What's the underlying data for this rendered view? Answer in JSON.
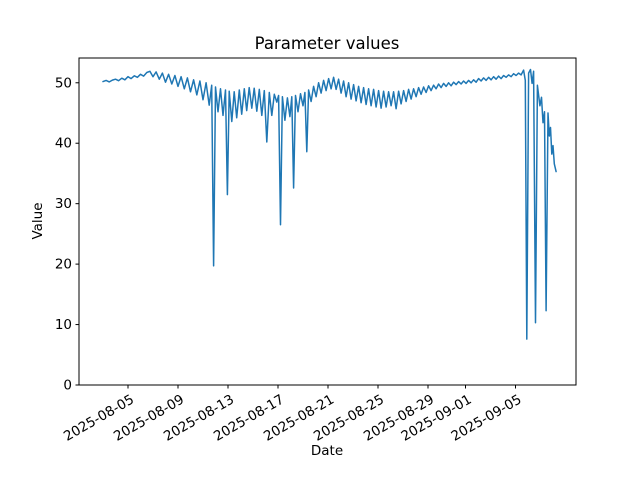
{
  "chart_data": {
    "type": "line",
    "title": "Parameter values",
    "xlabel": "Date",
    "ylabel": "Value",
    "line_color": "#1f77b4",
    "background_color": "#ffffff",
    "axis_color": "#000000",
    "legend": "none",
    "grid": false,
    "x_unit": "days since 2025-08-03",
    "xlim": [
      -1.92,
      37.84
    ],
    "ylim": [
      0,
      54.1
    ],
    "y_ticks": [
      0,
      10,
      20,
      30,
      40,
      50
    ],
    "x_ticks": [
      {
        "day": 2,
        "label": "2025-08-05"
      },
      {
        "day": 6,
        "label": "2025-08-09"
      },
      {
        "day": 10,
        "label": "2025-08-13"
      },
      {
        "day": 14,
        "label": "2025-08-17"
      },
      {
        "day": 18,
        "label": "2025-08-21"
      },
      {
        "day": 22,
        "label": "2025-08-25"
      },
      {
        "day": 26,
        "label": "2025-08-29"
      },
      {
        "day": 29,
        "label": "2025-09-01"
      },
      {
        "day": 33,
        "label": "2025-09-05"
      }
    ],
    "points": [
      [
        0.0,
        50.2
      ],
      [
        0.25,
        50.4
      ],
      [
        0.5,
        50.15
      ],
      [
        0.75,
        50.45
      ],
      [
        1.0,
        50.6
      ],
      [
        1.25,
        50.35
      ],
      [
        1.5,
        50.75
      ],
      [
        1.75,
        50.5
      ],
      [
        2.0,
        51.0
      ],
      [
        2.25,
        50.7
      ],
      [
        2.5,
        51.15
      ],
      [
        2.75,
        50.9
      ],
      [
        3.0,
        51.4
      ],
      [
        3.25,
        51.1
      ],
      [
        3.5,
        51.7
      ],
      [
        3.75,
        51.9
      ],
      [
        4.0,
        51.0
      ],
      [
        4.25,
        51.8
      ],
      [
        4.5,
        50.6
      ],
      [
        4.75,
        51.6
      ],
      [
        5.0,
        50.1
      ],
      [
        5.25,
        51.4
      ],
      [
        5.5,
        49.8
      ],
      [
        5.75,
        51.2
      ],
      [
        6.0,
        49.4
      ],
      [
        6.25,
        51.0
      ],
      [
        6.5,
        49.0
      ],
      [
        6.75,
        50.8
      ],
      [
        7.0,
        48.5
      ],
      [
        7.25,
        50.5
      ],
      [
        7.5,
        48.0
      ],
      [
        7.75,
        50.3
      ],
      [
        8.0,
        47.2
      ],
      [
        8.25,
        50.0
      ],
      [
        8.5,
        46.3
      ],
      [
        8.7,
        49.6
      ],
      [
        8.85,
        19.7
      ],
      [
        9.0,
        49.3
      ],
      [
        9.2,
        45.2
      ],
      [
        9.4,
        49.0
      ],
      [
        9.6,
        44.6
      ],
      [
        9.8,
        48.8
      ],
      [
        9.95,
        31.5
      ],
      [
        10.1,
        48.6
      ],
      [
        10.3,
        43.6
      ],
      [
        10.5,
        48.5
      ],
      [
        10.7,
        44.2
      ],
      [
        10.9,
        48.8
      ],
      [
        11.1,
        44.8
      ],
      [
        11.3,
        49.0
      ],
      [
        11.5,
        45.4
      ],
      [
        11.7,
        49.2
      ],
      [
        11.9,
        45.8
      ],
      [
        12.1,
        49.1
      ],
      [
        12.3,
        45.3
      ],
      [
        12.5,
        48.9
      ],
      [
        12.7,
        44.6
      ],
      [
        12.9,
        48.7
      ],
      [
        13.1,
        40.2
      ],
      [
        13.3,
        48.4
      ],
      [
        13.5,
        44.6
      ],
      [
        13.7,
        48.1
      ],
      [
        13.9,
        46.8
      ],
      [
        14.05,
        47.9
      ],
      [
        14.2,
        26.5
      ],
      [
        14.35,
        47.7
      ],
      [
        14.55,
        43.8
      ],
      [
        14.75,
        47.5
      ],
      [
        14.95,
        44.4
      ],
      [
        15.1,
        47.7
      ],
      [
        15.25,
        32.6
      ],
      [
        15.4,
        47.9
      ],
      [
        15.6,
        45.2
      ],
      [
        15.8,
        48.2
      ],
      [
        16.0,
        46.2
      ],
      [
        16.15,
        48.4
      ],
      [
        16.3,
        38.6
      ],
      [
        16.45,
        48.8
      ],
      [
        16.65,
        46.9
      ],
      [
        16.85,
        49.4
      ],
      [
        17.05,
        47.7
      ],
      [
        17.25,
        50.0
      ],
      [
        17.45,
        48.3
      ],
      [
        17.65,
        50.4
      ],
      [
        17.85,
        48.7
      ],
      [
        18.05,
        50.7
      ],
      [
        18.25,
        49.0
      ],
      [
        18.45,
        50.9
      ],
      [
        18.65,
        48.9
      ],
      [
        18.85,
        50.6
      ],
      [
        19.05,
        48.3
      ],
      [
        19.25,
        50.3
      ],
      [
        19.45,
        47.7
      ],
      [
        19.65,
        50.0
      ],
      [
        19.85,
        47.3
      ],
      [
        20.05,
        49.7
      ],
      [
        20.25,
        47.0
      ],
      [
        20.45,
        49.4
      ],
      [
        20.65,
        46.7
      ],
      [
        20.85,
        49.2
      ],
      [
        21.05,
        46.4
      ],
      [
        21.25,
        49.0
      ],
      [
        21.45,
        46.2
      ],
      [
        21.65,
        48.9
      ],
      [
        21.85,
        46.0
      ],
      [
        22.05,
        48.7
      ],
      [
        22.25,
        45.8
      ],
      [
        22.45,
        48.6
      ],
      [
        22.65,
        46.0
      ],
      [
        22.85,
        48.5
      ],
      [
        23.05,
        46.2
      ],
      [
        23.25,
        48.5
      ],
      [
        23.45,
        45.7
      ],
      [
        23.65,
        48.6
      ],
      [
        23.85,
        46.5
      ],
      [
        24.05,
        48.7
      ],
      [
        24.25,
        46.9
      ],
      [
        24.45,
        48.9
      ],
      [
        24.65,
        47.3
      ],
      [
        24.85,
        49.0
      ],
      [
        25.05,
        47.7
      ],
      [
        25.25,
        49.2
      ],
      [
        25.45,
        48.1
      ],
      [
        25.65,
        49.3
      ],
      [
        25.85,
        48.4
      ],
      [
        26.05,
        49.5
      ],
      [
        26.25,
        48.7
      ],
      [
        26.45,
        49.6
      ],
      [
        26.65,
        49.0
      ],
      [
        26.85,
        49.8
      ],
      [
        27.05,
        49.2
      ],
      [
        27.25,
        49.9
      ],
      [
        27.45,
        49.4
      ],
      [
        27.65,
        50.0
      ],
      [
        27.85,
        49.5
      ],
      [
        28.05,
        50.1
      ],
      [
        28.25,
        49.7
      ],
      [
        28.45,
        50.2
      ],
      [
        28.65,
        49.8
      ],
      [
        28.85,
        50.3
      ],
      [
        29.05,
        49.9
      ],
      [
        29.25,
        50.4
      ],
      [
        29.45,
        50.0
      ],
      [
        29.65,
        50.5
      ],
      [
        29.85,
        50.1
      ],
      [
        30.05,
        50.7
      ],
      [
        30.25,
        50.3
      ],
      [
        30.45,
        50.8
      ],
      [
        30.65,
        50.4
      ],
      [
        30.85,
        50.9
      ],
      [
        31.05,
        50.5
      ],
      [
        31.25,
        51.0
      ],
      [
        31.45,
        50.6
      ],
      [
        31.65,
        51.1
      ],
      [
        31.85,
        50.7
      ],
      [
        32.05,
        51.2
      ],
      [
        32.25,
        50.9
      ],
      [
        32.45,
        51.3
      ],
      [
        32.65,
        51.0
      ],
      [
        32.85,
        51.5
      ],
      [
        33.05,
        51.2
      ],
      [
        33.25,
        51.6
      ],
      [
        33.45,
        51.3
      ],
      [
        33.65,
        52.1
      ],
      [
        33.78,
        50.4
      ],
      [
        33.9,
        7.6
      ],
      [
        34.05,
        51.6
      ],
      [
        34.2,
        52.2
      ],
      [
        34.33,
        49.9
      ],
      [
        34.45,
        51.9
      ],
      [
        34.6,
        10.3
      ],
      [
        34.75,
        49.6
      ],
      [
        34.95,
        46.2
      ],
      [
        35.08,
        47.6
      ],
      [
        35.2,
        43.4
      ],
      [
        35.32,
        45.2
      ],
      [
        35.45,
        12.3
      ],
      [
        35.6,
        45.0
      ],
      [
        35.7,
        41.2
      ],
      [
        35.8,
        42.6
      ],
      [
        35.9,
        38.2
      ],
      [
        36.0,
        39.6
      ],
      [
        36.1,
        36.6
      ],
      [
        36.25,
        35.3
      ]
    ]
  }
}
